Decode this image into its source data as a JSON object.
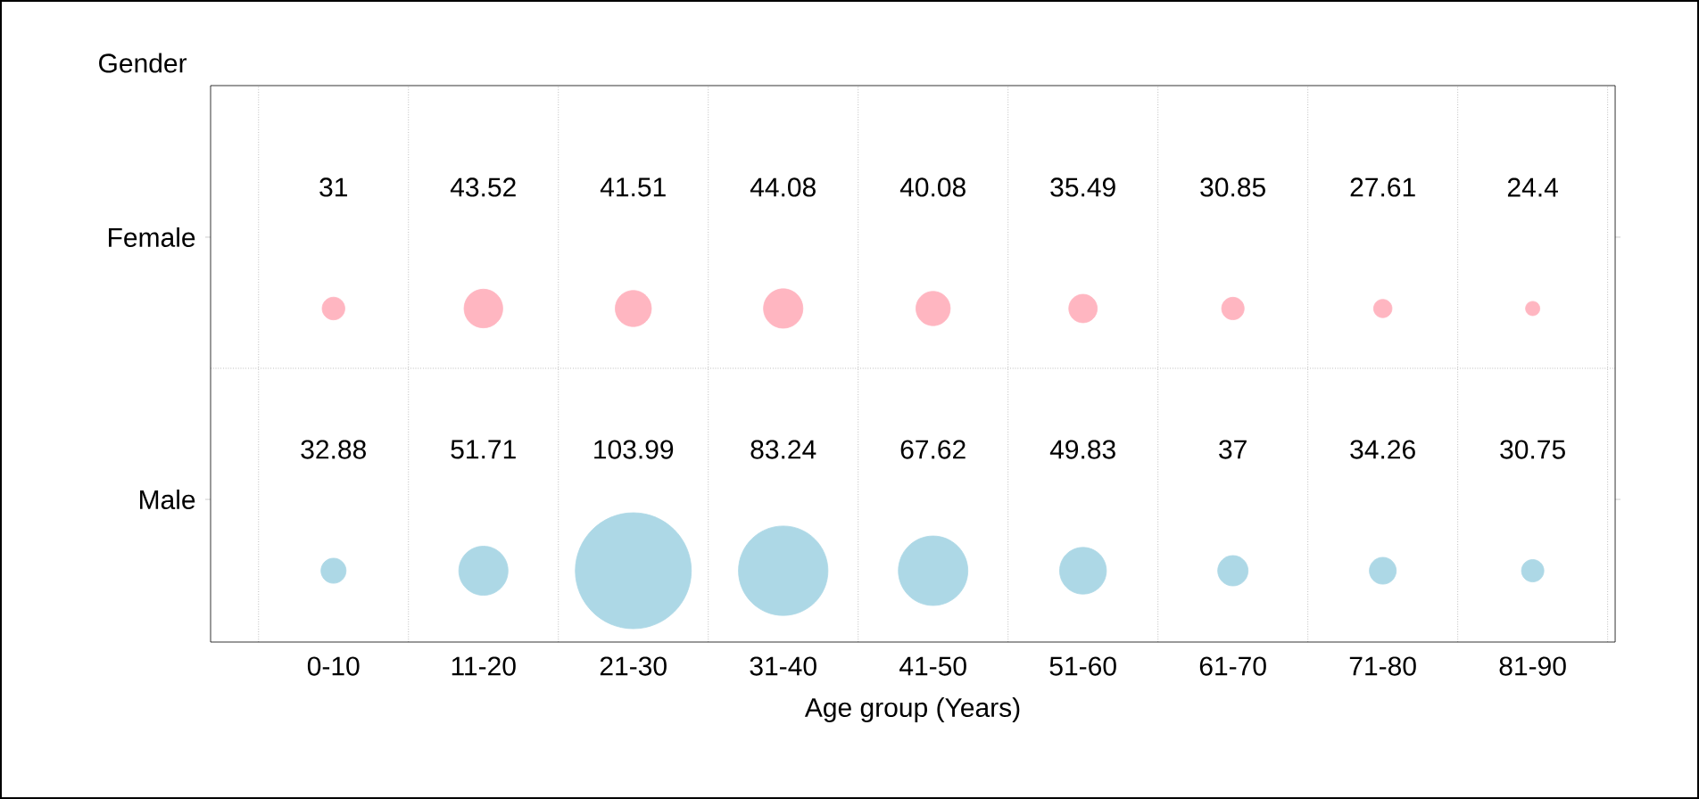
{
  "chart_data": {
    "type": "other",
    "xlabel": "Age group (Years)",
    "annotations": [
      "Gender"
    ],
    "categories": [
      "0-10",
      "11-20",
      "21-30",
      "31-40",
      "41-50",
      "51-60",
      "61-70",
      "71-80",
      "81-90"
    ],
    "series": [
      {
        "name": "Female",
        "colors": [
          "#ffb6c1",
          "#ffb6c1",
          "#ffb6c1",
          "#ffb6c1",
          "#ffb6c1",
          "#ffb6c1",
          "#ffb6c1",
          "#ffb6c1",
          "#ffb6c1"
        ],
        "values": [
          31,
          43.52,
          41.51,
          44.08,
          40.08,
          35.49,
          30.85,
          27.61,
          24.4
        ]
      },
      {
        "name": "Male",
        "colors": [
          "#add8e6",
          "#add8e6",
          "#add8e6",
          "#add8e6",
          "#add8e6",
          "#add8e6",
          "#add8e6",
          "#add8e6",
          "#add8e6"
        ],
        "values": [
          32.88,
          51.71,
          103.99,
          83.24,
          67.62,
          49.83,
          37,
          34.26,
          30.75
        ]
      }
    ],
    "data_labels": true
  }
}
